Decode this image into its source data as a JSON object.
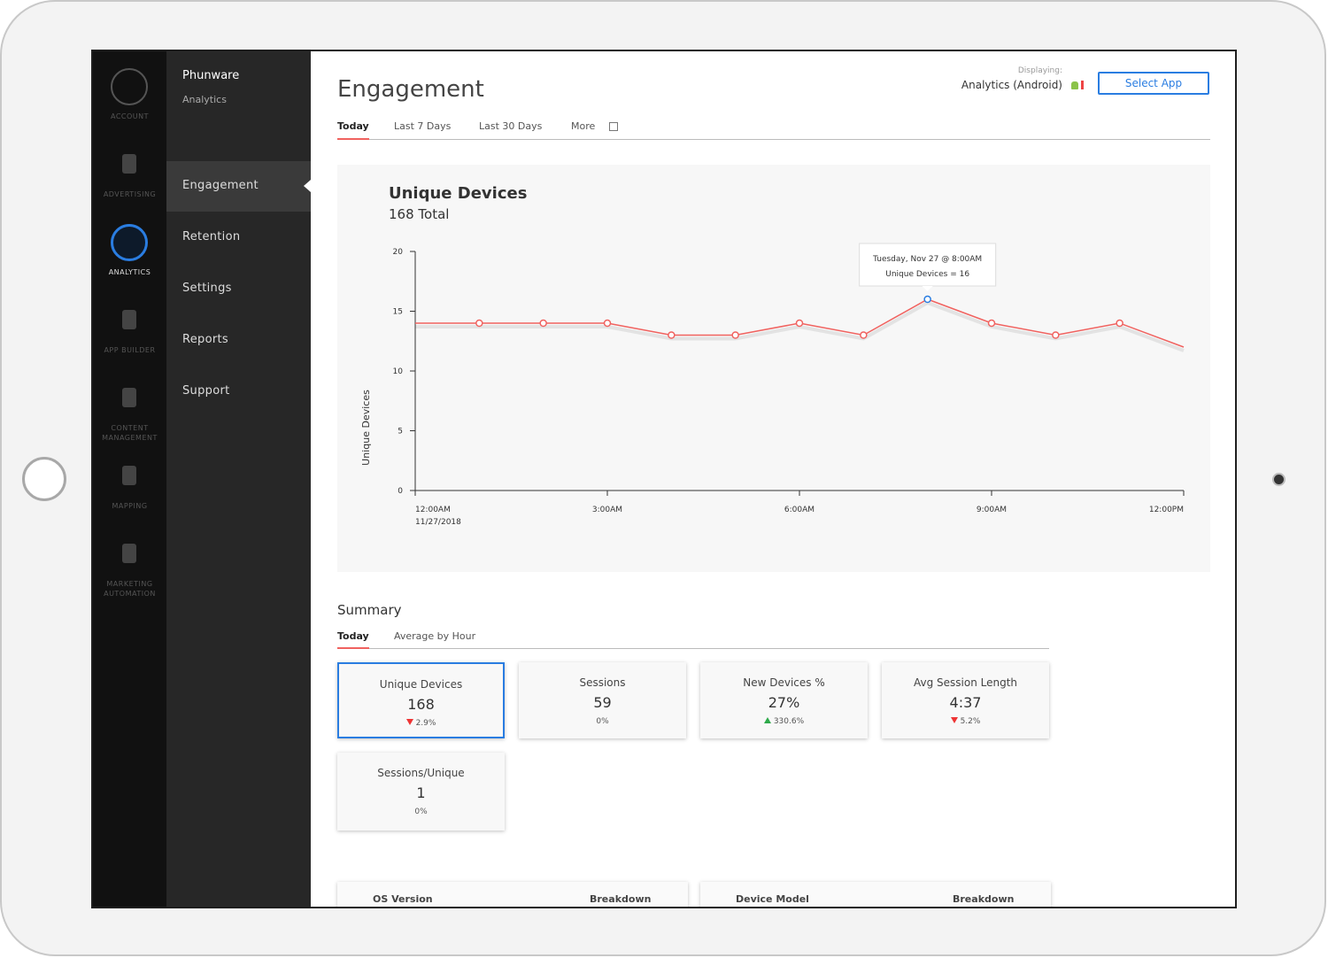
{
  "sidebar_icons": [
    {
      "label": "ACCOUNT"
    },
    {
      "label": "ADVERTISING"
    },
    {
      "label": "ANALYTICS"
    },
    {
      "label": "APP BUILDER"
    },
    {
      "label": "CONTENT MANAGEMENT"
    },
    {
      "label": "MAPPING"
    },
    {
      "label": "MARKETING AUTOMATION"
    }
  ],
  "brand": {
    "name": "Phunware",
    "product": "Analytics"
  },
  "menu": [
    "Engagement",
    "Retention",
    "Settings",
    "Reports",
    "Support"
  ],
  "header": {
    "title": "Engagement",
    "displaying_label": "Displaying:",
    "app": "Analytics (Android)",
    "button": "Select App"
  },
  "date_tabs": [
    "Today",
    "Last 7 Days",
    "Last 30 Days",
    "More"
  ],
  "chart": {
    "type": "line",
    "title": "Unique Devices",
    "subtitle": "168 Total",
    "y_label": "Unique Devices",
    "x": [
      0,
      1,
      2,
      3,
      4,
      5,
      6,
      7,
      8,
      9,
      10,
      11,
      12
    ],
    "values": [
      14,
      14,
      14,
      14,
      13,
      13,
      14,
      13,
      16,
      14,
      13,
      14,
      12
    ],
    "color": "#f0625f",
    "xlim": [
      0,
      12
    ],
    "xticks": [
      {
        "value": 0,
        "label": "12:00AM"
      },
      {
        "value": 3,
        "label": "3:00AM"
      },
      {
        "value": 6,
        "label": "6:00AM"
      },
      {
        "value": 9,
        "label": "9:00AM"
      },
      {
        "value": 12,
        "label": "12:00PM"
      }
    ],
    "x_date_label": "11/27/2018",
    "ylim": [
      0,
      20
    ],
    "yticks": [
      0,
      5,
      10,
      15,
      20
    ],
    "tooltip": {
      "title": "Tuesday, Nov 27 @ 8:00AM",
      "text": "Unique Devices = 16"
    }
  },
  "summary": {
    "title": "Summary",
    "tabs": [
      "Today",
      "Average by Hour"
    ],
    "cards": [
      {
        "label": "Unique Devices",
        "value": "168",
        "change": "2.9%",
        "trend": "down"
      },
      {
        "label": "Sessions",
        "value": "59",
        "change": "0%"
      },
      {
        "label": "New Devices %",
        "value": "27%",
        "change": "330.6%",
        "trend": "up"
      },
      {
        "label": "Avg Session Length",
        "value": "4:37",
        "change": "5.2%",
        "trend": "down"
      },
      {
        "label": "Sessions/Unique",
        "value": "1",
        "change": "0%"
      }
    ]
  },
  "tables": [
    {
      "headers": [
        "OS Version",
        "Breakdown"
      ]
    },
    {
      "headers": [
        "Device Model",
        "Breakdown"
      ]
    }
  ]
}
